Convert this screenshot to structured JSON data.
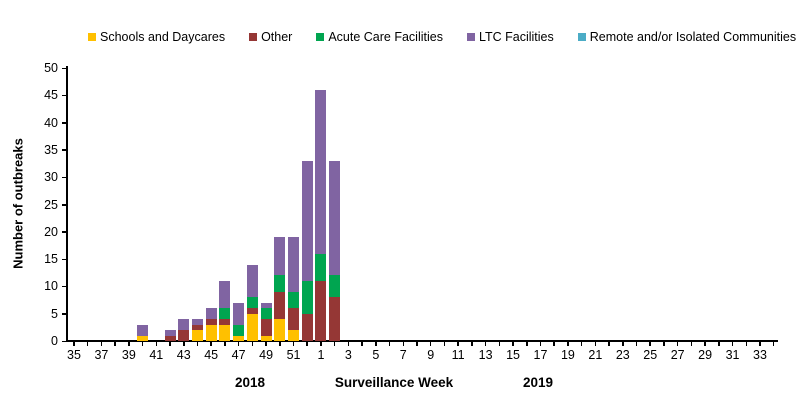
{
  "chart_data": {
    "type": "bar",
    "stacked": true,
    "title": "",
    "xlabel": "Surveillance Week",
    "ylabel": "Number of outbreaks",
    "ylim": [
      0,
      50
    ],
    "ytick_step": 5,
    "grid": false,
    "legend_position": "top",
    "x_axis": {
      "year_groups": [
        {
          "label": "2018",
          "week_start": 35,
          "week_end": 52
        },
        {
          "label": "2019",
          "week_start": 1,
          "week_end": 34
        }
      ],
      "tick_labels": [
        "35",
        "37",
        "39",
        "41",
        "43",
        "45",
        "47",
        "49",
        "51",
        "1",
        "3",
        "5",
        "7",
        "9",
        "11",
        "13",
        "15",
        "17",
        "19",
        "21",
        "23",
        "25",
        "27",
        "29",
        "31",
        "33"
      ],
      "tick_label_every": 2
    },
    "series": [
      {
        "name": "Schools and Daycares",
        "color": "#FFC000"
      },
      {
        "name": "Other",
        "color": "#953735"
      },
      {
        "name": "Acute Care Facilities",
        "color": "#00A550"
      },
      {
        "name": "LTC Facilities",
        "color": "#8064A2"
      },
      {
        "name": "Remote and/or Isolated Communities",
        "color": "#4BACC6"
      }
    ],
    "bars": [
      {
        "year": 2018,
        "week": 40,
        "values": [
          1,
          0,
          0,
          2,
          0
        ],
        "total": 3
      },
      {
        "year": 2018,
        "week": 42,
        "values": [
          0,
          1,
          0,
          1,
          0
        ],
        "total": 2
      },
      {
        "year": 2018,
        "week": 43,
        "values": [
          0,
          2,
          0,
          2,
          0
        ],
        "total": 4
      },
      {
        "year": 2018,
        "week": 44,
        "values": [
          2,
          1,
          0,
          1,
          0
        ],
        "total": 4
      },
      {
        "year": 2018,
        "week": 45,
        "values": [
          3,
          1,
          0,
          2,
          0
        ],
        "total": 6
      },
      {
        "year": 2018,
        "week": 46,
        "values": [
          3,
          1,
          2,
          5,
          0
        ],
        "total": 11
      },
      {
        "year": 2018,
        "week": 47,
        "values": [
          1,
          0,
          2,
          4,
          0
        ],
        "total": 7
      },
      {
        "year": 2018,
        "week": 48,
        "values": [
          5,
          1,
          2,
          6,
          0
        ],
        "total": 14
      },
      {
        "year": 2018,
        "week": 49,
        "values": [
          1,
          3,
          2,
          1,
          0
        ],
        "total": 7
      },
      {
        "year": 2018,
        "week": 50,
        "values": [
          4,
          5,
          3,
          7,
          0
        ],
        "total": 19
      },
      {
        "year": 2018,
        "week": 51,
        "values": [
          2,
          4,
          3,
          10,
          0
        ],
        "total": 19
      },
      {
        "year": 2018,
        "week": 52,
        "values": [
          0,
          5,
          6,
          22,
          0
        ],
        "total": 33
      },
      {
        "year": 2019,
        "week": 1,
        "values": [
          0,
          11,
          5,
          30,
          0
        ],
        "total": 46
      },
      {
        "year": 2019,
        "week": 2,
        "values": [
          0,
          8,
          4,
          21,
          0
        ],
        "total": 33
      }
    ]
  },
  "layout_values": {
    "y_tick_values": [
      0,
      5,
      10,
      15,
      20,
      25,
      30,
      35,
      40,
      45,
      50
    ]
  }
}
